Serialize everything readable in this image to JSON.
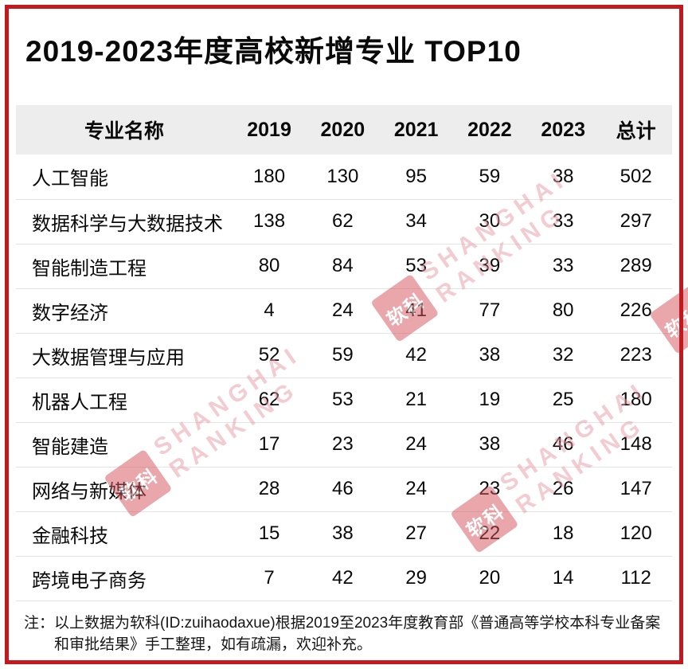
{
  "title": "2019-2023年度高校新增专业 TOP10",
  "chart_data": {
    "type": "table",
    "title": "2019-2023年度高校新增专业 TOP10",
    "columns": [
      "专业名称",
      "2019",
      "2020",
      "2021",
      "2022",
      "2023",
      "总计"
    ],
    "rows": [
      [
        "人工智能",
        180,
        130,
        95,
        59,
        38,
        502
      ],
      [
        "数据科学与大数据技术",
        138,
        62,
        34,
        30,
        33,
        297
      ],
      [
        "智能制造工程",
        80,
        84,
        53,
        39,
        33,
        289
      ],
      [
        "数字经济",
        4,
        24,
        41,
        77,
        80,
        226
      ],
      [
        "大数据管理与应用",
        52,
        59,
        42,
        38,
        32,
        223
      ],
      [
        "机器人工程",
        62,
        53,
        21,
        19,
        25,
        180
      ],
      [
        "智能建造",
        17,
        23,
        24,
        38,
        46,
        148
      ],
      [
        "网络与新媒体",
        28,
        46,
        24,
        23,
        26,
        147
      ],
      [
        "金融科技",
        15,
        38,
        27,
        22,
        18,
        120
      ],
      [
        "跨境电子商务",
        7,
        42,
        29,
        20,
        14,
        112
      ]
    ]
  },
  "footnote": {
    "prefix": "注：",
    "text": "以上数据为软科(ID:zuihaodaxue)根据2019至2023年度教育部《普通高等学校本科专业备案和审批结果》手工整理，如有疏漏，欢迎补充。"
  },
  "watermark": {
    "line1": "SHANGHAI",
    "line2": "RANKING",
    "logo_text": "软科"
  },
  "colors": {
    "frame_red": "#c2181e",
    "header_bg": "#ededed",
    "row_divider": "#e3e3e3",
    "watermark_pink": "#e99ba5",
    "watermark_logo_red": "#d4525a"
  }
}
